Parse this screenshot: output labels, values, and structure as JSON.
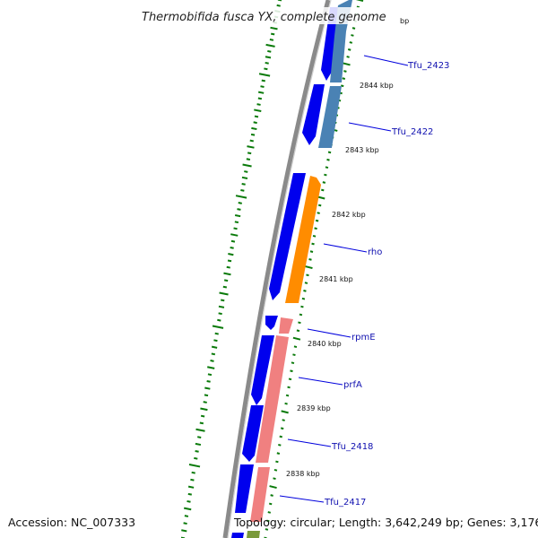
{
  "title": "Thermobifida fusca YX, complete genome",
  "footer": {
    "accession": "Accession: NC_007333",
    "summary": "Topology: circular; Length: 3,642,249 bp; Genes: 3,176"
  },
  "colors": {
    "backbone": "#8a8a8a",
    "forward_cds": "#0000ee",
    "reverse_cds": "#4a82b4",
    "rho": "#ff8c00",
    "rpmE_prfA": "#f08080",
    "gc_skew": "#0a7a0a",
    "label_line": "#0000dd",
    "label_text": "#1010b0"
  },
  "scale_labels": [
    "2844 kbp",
    "2843 kbp",
    "2842 kbp",
    "2841 kbp",
    "2840 kbp",
    "2839 kbp",
    "2838 kbp"
  ],
  "partial_scale_label": "bp",
  "gene_labels": [
    "Tfu_2423",
    "Tfu_2422",
    "rho",
    "rpmE",
    "prfA",
    "Tfu_2418",
    "Tfu_2417"
  ]
}
